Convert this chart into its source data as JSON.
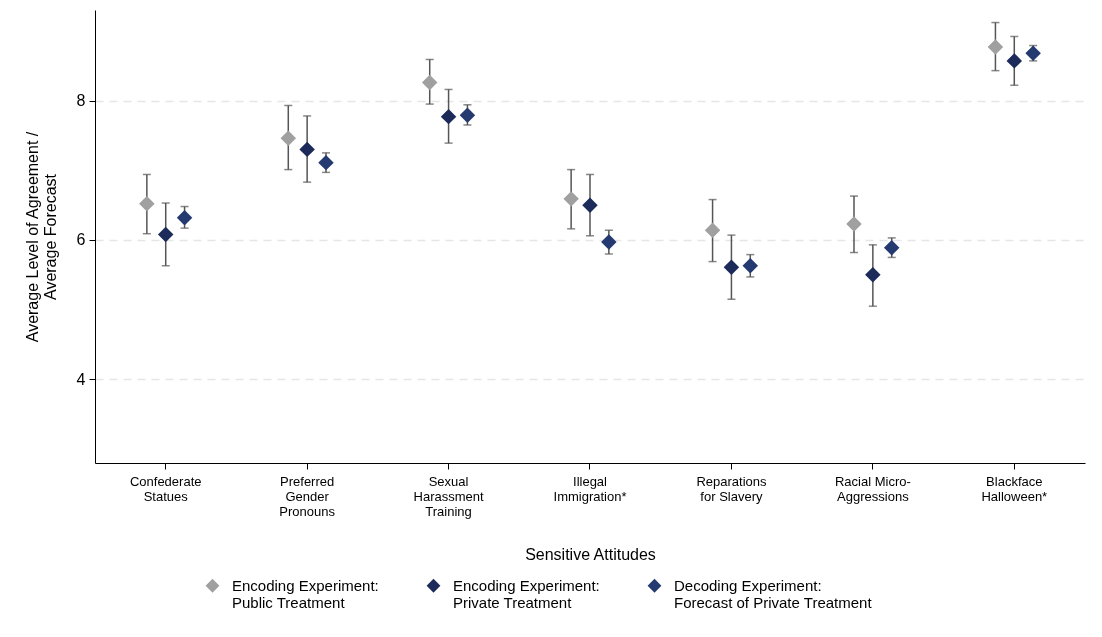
{
  "chart_data": {
    "type": "scatter",
    "xlabel": "Sensitive Attitudes",
    "ylabel": "Average Level of Agreement / Average Forecast",
    "categories": [
      "Confederate Statues",
      "Preferred Gender Pronouns",
      "Sexual Harassment Training",
      "Illegal Immigration*",
      "Reparations for Slavery",
      "Racial Micro-Aggressions",
      "Blackface Halloween*"
    ],
    "ylim": [
      2.8,
      9.3
    ],
    "yticks": [
      4,
      6,
      8
    ],
    "grid": "y",
    "legend": "bottom",
    "marker": "diamond",
    "series": [
      {
        "name": "Encoding Experiment: Public Treatment",
        "color": "#a0a0a0",
        "values": [
          6.52,
          7.46,
          8.26,
          6.59,
          6.14,
          6.23,
          8.77
        ],
        "errors": [
          [
            6.09,
            6.94
          ],
          [
            7.01,
            7.93
          ],
          [
            7.95,
            8.59
          ],
          [
            6.16,
            7.01
          ],
          [
            5.69,
            6.58
          ],
          [
            5.82,
            6.63
          ],
          [
            8.43,
            9.12
          ]
        ]
      },
      {
        "name": "Encoding Experiment: Private Treatment",
        "color": "#1c2b5a",
        "values": [
          6.08,
          7.3,
          7.77,
          6.5,
          5.61,
          5.5,
          8.57
        ],
        "errors": [
          [
            5.63,
            6.53
          ],
          [
            6.83,
            7.78
          ],
          [
            7.39,
            8.16
          ],
          [
            6.06,
            6.94
          ],
          [
            5.15,
            6.07
          ],
          [
            5.05,
            5.93
          ],
          [
            8.22,
            8.92
          ]
        ]
      },
      {
        "name": "Decoding Experiment: Forecast of Private Treatment",
        "color": "#243a70",
        "values": [
          6.32,
          7.11,
          7.79,
          5.97,
          5.63,
          5.89,
          8.68
        ],
        "errors": [
          [
            6.17,
            6.48
          ],
          [
            6.97,
            7.25
          ],
          [
            7.65,
            7.94
          ],
          [
            5.8,
            6.14
          ],
          [
            5.47,
            5.79
          ],
          [
            5.75,
            6.03
          ],
          [
            8.57,
            8.79
          ]
        ]
      }
    ]
  }
}
